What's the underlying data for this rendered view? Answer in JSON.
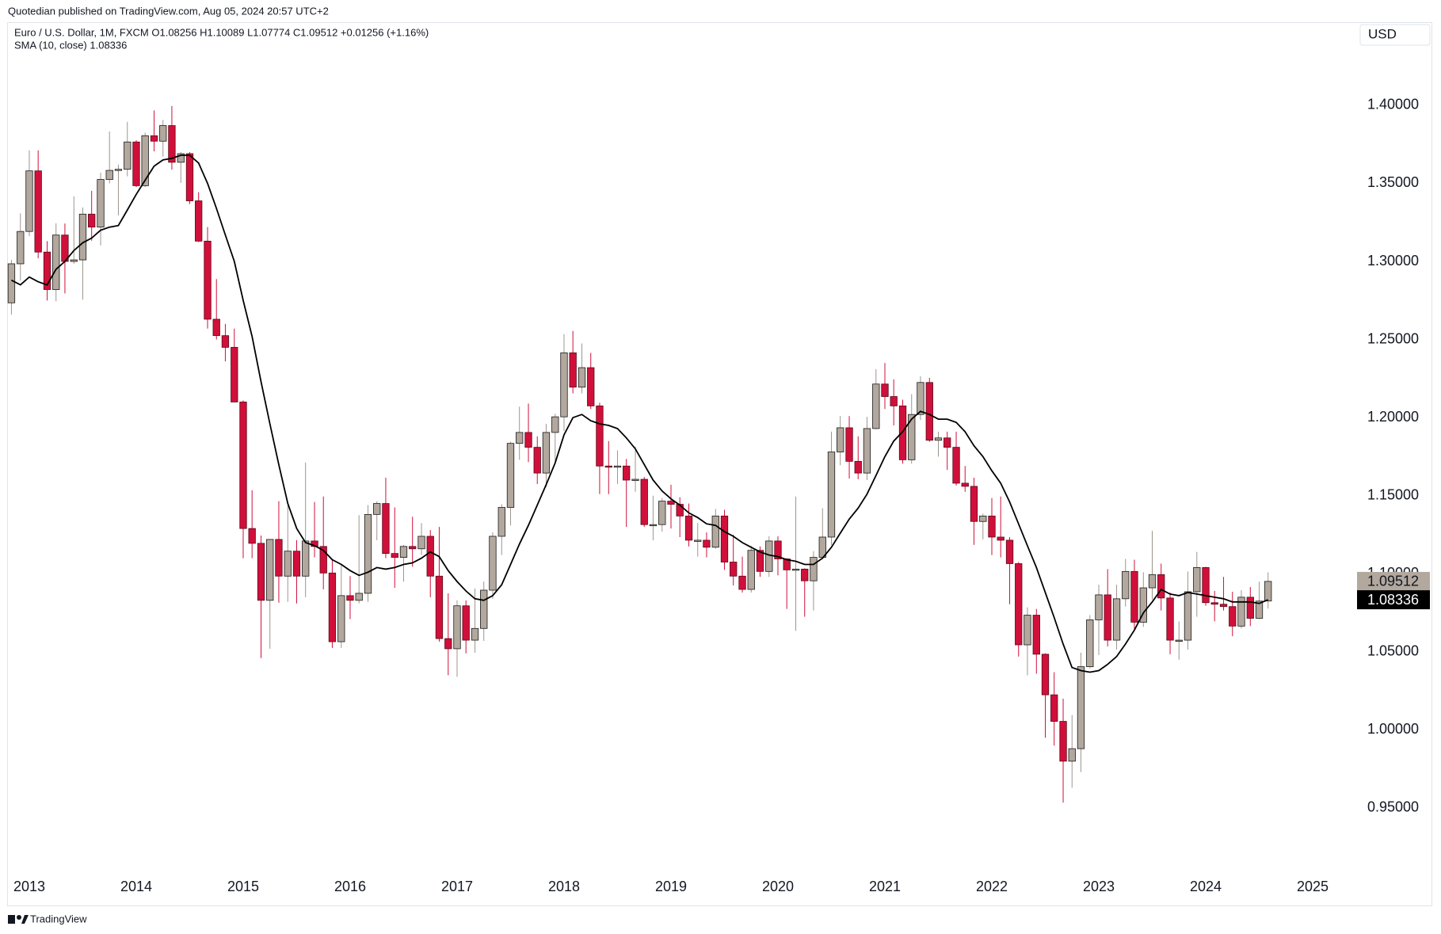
{
  "chart_data": {
    "type": "candlestick",
    "attribution": "Quotedian published on TradingView.com, Aug 05, 2024 20:57 UTC+2",
    "legend": [
      "Euro / U.S. Dollar, 1M, FXCM O1.08256 H1.10089 L1.07774 C1.09512 +0.01256 (+1.16%)",
      "SMA (10, close) 1.08336"
    ],
    "currency": "USD",
    "footer": "TradingView",
    "up_color": "#b2a89e",
    "down_color": "#d0103a",
    "x": [
      2012.833,
      2012.917,
      2013,
      2013.083,
      2013.167,
      2013.25,
      2013.333,
      2013.417,
      2013.5,
      2013.583,
      2013.667,
      2013.75,
      2013.833,
      2013.917,
      2014,
      2014.083,
      2014.167,
      2014.25,
      2014.333,
      2014.417,
      2014.5,
      2014.583,
      2014.667,
      2014.75,
      2014.833,
      2014.917,
      2015,
      2015.083,
      2015.167,
      2015.25,
      2015.333,
      2015.417,
      2015.5,
      2015.583,
      2015.667,
      2015.75,
      2015.833,
      2015.917,
      2016,
      2016.083,
      2016.167,
      2016.25,
      2016.333,
      2016.417,
      2016.5,
      2016.583,
      2016.667,
      2016.75,
      2016.833,
      2016.917,
      2017,
      2017.083,
      2017.167,
      2017.25,
      2017.333,
      2017.417,
      2017.5,
      2017.583,
      2017.667,
      2017.75,
      2017.833,
      2017.917,
      2018,
      2018.083,
      2018.167,
      2018.25,
      2018.333,
      2018.417,
      2018.5,
      2018.583,
      2018.667,
      2018.75,
      2018.833,
      2018.917,
      2019,
      2019.083,
      2019.167,
      2019.25,
      2019.333,
      2019.417,
      2019.5,
      2019.583,
      2019.667,
      2019.75,
      2019.833,
      2019.917,
      2020,
      2020.083,
      2020.167,
      2020.25,
      2020.333,
      2020.417,
      2020.5,
      2020.583,
      2020.667,
      2020.75,
      2020.833,
      2020.917,
      2021,
      2021.083,
      2021.167,
      2021.25,
      2021.333,
      2021.417,
      2021.5,
      2021.583,
      2021.667,
      2021.75,
      2021.833,
      2021.917,
      2022,
      2022.083,
      2022.167,
      2022.25,
      2022.333,
      2022.417,
      2022.5,
      2022.583,
      2022.667,
      2022.75,
      2022.833,
      2022.917,
      2023,
      2023.083,
      2023.167,
      2023.25,
      2023.333,
      2023.417,
      2023.5,
      2023.583,
      2023.667,
      2023.75,
      2023.833,
      2023.917,
      2024,
      2024.083,
      2024.167,
      2024.25,
      2024.333,
      2024.417,
      2024.5,
      2024.583
    ],
    "open": [
      1.2735,
      1.2985,
      1.3192,
      1.358,
      1.306,
      1.282,
      1.3169,
      1.3,
      1.301,
      1.3303,
      1.322,
      1.3525,
      1.3583,
      1.359,
      1.3765,
      1.3485,
      1.3805,
      1.377,
      1.387,
      1.3635,
      1.369,
      1.3388,
      1.313,
      1.263,
      1.2525,
      1.245,
      1.21,
      1.129,
      1.1195,
      1.083,
      1.122,
      1.0985,
      1.1145,
      1.0985,
      1.121,
      1.1175,
      1.1005,
      1.0565,
      1.086,
      1.083,
      1.0875,
      1.138,
      1.145,
      1.113,
      1.1105,
      1.1175,
      1.116,
      1.124,
      1.0985,
      1.0585,
      1.052,
      1.0795,
      1.0575,
      1.065,
      1.0895,
      1.124,
      1.1425,
      1.1835,
      1.1905,
      1.181,
      1.1645,
      1.1905,
      1.2005,
      1.2415,
      1.2195,
      1.232,
      1.2075,
      1.169,
      1.1685,
      1.169,
      1.16,
      1.1605,
      1.1315,
      1.1315,
      1.1465,
      1.1445,
      1.137,
      1.1215,
      1.1215,
      1.117,
      1.137,
      1.1075,
      1.0985,
      1.09,
      1.115,
      1.1015,
      1.121,
      1.1095,
      1.1025,
      1.103,
      1.0955,
      1.1105,
      1.1235,
      1.178,
      1.1935,
      1.172,
      1.1645,
      1.193,
      1.2215,
      1.2135,
      1.2075,
      1.173,
      1.202,
      1.2225,
      1.1855,
      1.187,
      1.181,
      1.158,
      1.156,
      1.1335,
      1.137,
      1.1235,
      1.1215,
      1.1065,
      1.0545,
      1.0735,
      1.0485,
      1.0225,
      1.0055,
      0.98,
      0.988,
      1.0405,
      1.0705,
      1.0865,
      1.0575,
      1.084,
      1.1015,
      1.069,
      1.091,
      1.0995,
      1.0845,
      1.0575,
      1.0575,
      1.0885,
      1.104,
      1.0815,
      1.0805,
      1.079,
      1.0665,
      1.085,
      1.0715,
      1.08256
    ],
    "high": [
      1.301,
      1.3308,
      1.3711,
      1.3711,
      1.313,
      1.3244,
      1.3243,
      1.3417,
      1.3346,
      1.3452,
      1.3568,
      1.3832,
      1.362,
      1.3894,
      1.3776,
      1.3825,
      1.3967,
      1.3906,
      1.3995,
      1.3701,
      1.37,
      1.3443,
      1.322,
      1.2887,
      1.26,
      1.257,
      1.211,
      1.1535,
      1.1245,
      1.1215,
      1.1465,
      1.1435,
      1.1215,
      1.1713,
      1.146,
      1.1495,
      1.1095,
      1.1055,
      1.0985,
      1.1375,
      1.144,
      1.1465,
      1.1615,
      1.1425,
      1.1185,
      1.1365,
      1.1325,
      1.128,
      1.13,
      1.0875,
      1.083,
      1.083,
      1.0905,
      1.095,
      1.1265,
      1.1445,
      1.1845,
      1.207,
      1.209,
      1.188,
      1.196,
      1.2025,
      1.2535,
      1.2555,
      1.2475,
      1.2415,
      1.2095,
      1.185,
      1.179,
      1.1735,
      1.1815,
      1.162,
      1.15,
      1.1485,
      1.157,
      1.149,
      1.145,
      1.1325,
      1.1265,
      1.1415,
      1.141,
      1.125,
      1.111,
      1.118,
      1.1175,
      1.124,
      1.124,
      1.11,
      1.1495,
      1.1035,
      1.1145,
      1.142,
      1.191,
      1.201,
      1.201,
      1.188,
      1.2005,
      1.231,
      1.235,
      1.2245,
      1.2115,
      1.215,
      1.2265,
      1.2255,
      1.191,
      1.191,
      1.191,
      1.169,
      1.1615,
      1.1385,
      1.1485,
      1.1495,
      1.1235,
      1.1075,
      1.0785,
      1.0775,
      1.049,
      1.037,
      1.02,
      1.0095,
      1.0495,
      1.0735,
      1.093,
      1.103,
      1.093,
      1.1095,
      1.109,
      1.101,
      1.1275,
      1.1065,
      1.088,
      1.0695,
      1.1015,
      1.114,
      1.1045,
      1.089,
      1.098,
      1.0885,
      1.0895,
      1.0915,
      1.095,
      1.10089
    ],
    "low": [
      1.266,
      1.2877,
      1.3162,
      1.302,
      1.275,
      1.2745,
      1.2795,
      1.2985,
      1.2755,
      1.3133,
      1.3103,
      1.35,
      1.3295,
      1.3545,
      1.3477,
      1.3476,
      1.3705,
      1.3671,
      1.3588,
      1.3503,
      1.3367,
      1.3125,
      1.257,
      1.25,
      1.236,
      1.21,
      1.11,
      1.11,
      1.046,
      1.052,
      1.0815,
      1.082,
      1.081,
      1.085,
      1.1105,
      1.09,
      1.0525,
      1.0525,
      1.071,
      1.081,
      1.082,
      1.1215,
      1.11,
      1.091,
      1.095,
      1.1045,
      1.112,
      1.085,
      1.0565,
      1.035,
      1.034,
      1.049,
      1.0495,
      1.057,
      1.084,
      1.112,
      1.131,
      1.173,
      1.1715,
      1.1575,
      1.1555,
      1.172,
      1.1915,
      1.2155,
      1.2155,
      1.2055,
      1.151,
      1.151,
      1.1575,
      1.13,
      1.1525,
      1.13,
      1.1215,
      1.127,
      1.129,
      1.1235,
      1.1175,
      1.111,
      1.1105,
      1.116,
      1.1025,
      1.0925,
      1.088,
      1.088,
      1.098,
      1.098,
      1.099,
      1.0775,
      1.0635,
      1.0725,
      1.0765,
      1.11,
      1.1185,
      1.1695,
      1.161,
      1.1605,
      1.16,
      1.1925,
      1.2055,
      1.195,
      1.1705,
      1.1705,
      1.1985,
      1.1845,
      1.175,
      1.1665,
      1.1565,
      1.1525,
      1.1185,
      1.122,
      1.112,
      1.1105,
      1.0805,
      1.047,
      1.035,
      1.036,
      0.995,
      0.99,
      0.9535,
      0.963,
      0.973,
      1.0395,
      1.048,
      1.0535,
      1.0515,
      1.079,
      1.0635,
      1.066,
      1.0835,
      1.0765,
      1.0485,
      1.045,
      1.0515,
      1.0725,
      1.0795,
      1.0695,
      1.0765,
      1.06,
      1.065,
      1.0665,
      1.071,
      1.07774
    ],
    "close": [
      1.2985,
      1.3192,
      1.358,
      1.306,
      1.282,
      1.3169,
      1.3,
      1.301,
      1.3303,
      1.322,
      1.3525,
      1.3583,
      1.359,
      1.3765,
      1.3485,
      1.3805,
      1.377,
      1.387,
      1.3635,
      1.369,
      1.3388,
      1.313,
      1.263,
      1.2525,
      1.245,
      1.21,
      1.129,
      1.1195,
      1.083,
      1.122,
      1.0985,
      1.1145,
      1.0985,
      1.121,
      1.1175,
      1.1005,
      1.0565,
      1.086,
      1.083,
      1.0875,
      1.138,
      1.145,
      1.113,
      1.1105,
      1.1175,
      1.116,
      1.124,
      1.0985,
      1.0585,
      1.052,
      1.0795,
      1.0575,
      1.065,
      1.0895,
      1.124,
      1.1425,
      1.1835,
      1.1905,
      1.181,
      1.1645,
      1.1905,
      1.2005,
      1.2415,
      1.2195,
      1.232,
      1.2075,
      1.169,
      1.1685,
      1.169,
      1.16,
      1.1605,
      1.1315,
      1.1315,
      1.1465,
      1.1445,
      1.137,
      1.1215,
      1.1215,
      1.117,
      1.137,
      1.1075,
      1.0985,
      1.09,
      1.115,
      1.1015,
      1.121,
      1.1095,
      1.1025,
      1.103,
      1.0955,
      1.1105,
      1.1235,
      1.178,
      1.1935,
      1.172,
      1.1645,
      1.193,
      1.2215,
      1.2135,
      1.2075,
      1.173,
      1.202,
      1.2225,
      1.1855,
      1.187,
      1.181,
      1.158,
      1.156,
      1.1335,
      1.137,
      1.1235,
      1.1215,
      1.1065,
      1.0545,
      1.0735,
      1.0485,
      1.0225,
      1.0055,
      0.98,
      0.988,
      1.0405,
      1.0705,
      1.0865,
      1.0575,
      1.084,
      1.1015,
      1.069,
      1.091,
      1.0995,
      1.0845,
      1.0575,
      1.0575,
      1.0885,
      1.104,
      1.0815,
      1.0805,
      1.079,
      1.0665,
      1.085,
      1.0715,
      1.0825,
      1.09512
    ],
    "sma": {
      "color": "#000000",
      "values": [
        1.288,
        1.285,
        1.29,
        1.287,
        1.285,
        1.295,
        1.3,
        1.307,
        1.312,
        1.315,
        1.32,
        1.322,
        1.323,
        1.333,
        1.343,
        1.352,
        1.361,
        1.365,
        1.366,
        1.368,
        1.368,
        1.363,
        1.35,
        1.334,
        1.317,
        1.3,
        1.275,
        1.252,
        1.223,
        1.196,
        1.17,
        1.145,
        1.129,
        1.12,
        1.118,
        1.115,
        1.109,
        1.106,
        1.102,
        1.099,
        1.101,
        1.104,
        1.103,
        1.104,
        1.106,
        1.107,
        1.11,
        1.114,
        1.111,
        1.102,
        1.095,
        1.089,
        1.084,
        1.083,
        1.086,
        1.093,
        1.106,
        1.119,
        1.131,
        1.144,
        1.157,
        1.171,
        1.189,
        1.2,
        1.202,
        1.198,
        1.196,
        1.195,
        1.193,
        1.187,
        1.18,
        1.17,
        1.16,
        1.153,
        1.148,
        1.144,
        1.139,
        1.136,
        1.132,
        1.131,
        1.127,
        1.124,
        1.12,
        1.117,
        1.114,
        1.112,
        1.111,
        1.109,
        1.108,
        1.106,
        1.106,
        1.11,
        1.117,
        1.126,
        1.135,
        1.142,
        1.151,
        1.163,
        1.175,
        1.185,
        1.191,
        1.199,
        1.204,
        1.202,
        1.199,
        1.199,
        1.197,
        1.191,
        1.182,
        1.175,
        1.166,
        1.158,
        1.146,
        1.132,
        1.118,
        1.104,
        1.088,
        1.072,
        1.055,
        1.04,
        1.038,
        1.037,
        1.038,
        1.042,
        1.047,
        1.055,
        1.064,
        1.075,
        1.082,
        1.09,
        1.087,
        1.086,
        1.088,
        1.087,
        1.086,
        1.085,
        1.084,
        1.082,
        1.082,
        1.082,
        1.081,
        1.08336
      ]
    },
    "price_tags": [
      {
        "value": 1.09512,
        "label": "1.09512",
        "color": "#b2a89e",
        "text_color": "#131722"
      },
      {
        "value": 1.08336,
        "label": "1.08336",
        "color": "#000000",
        "text_color": "#ffffff"
      }
    ],
    "xlim": [
      2012.815,
      2025.4
    ],
    "xticks": [
      2013,
      2014,
      2015,
      2016,
      2017,
      2018,
      2019,
      2020,
      2021,
      2022,
      2023,
      2024,
      2025
    ],
    "ylim": [
      0.9084,
      1.4527
    ],
    "yticks": [
      {
        "value": 0.95,
        "label": "0.95000"
      },
      {
        "value": 1.0,
        "label": "1.00000"
      },
      {
        "value": 1.05,
        "label": "1.05000"
      },
      {
        "value": 1.1,
        "label": "1.10000"
      },
      {
        "value": 1.15,
        "label": "1.15000"
      },
      {
        "value": 1.2,
        "label": "1.20000"
      },
      {
        "value": 1.25,
        "label": "1.25000"
      },
      {
        "value": 1.3,
        "label": "1.30000"
      },
      {
        "value": 1.35,
        "label": "1.35000"
      },
      {
        "value": 1.4,
        "label": "1.40000"
      }
    ]
  }
}
